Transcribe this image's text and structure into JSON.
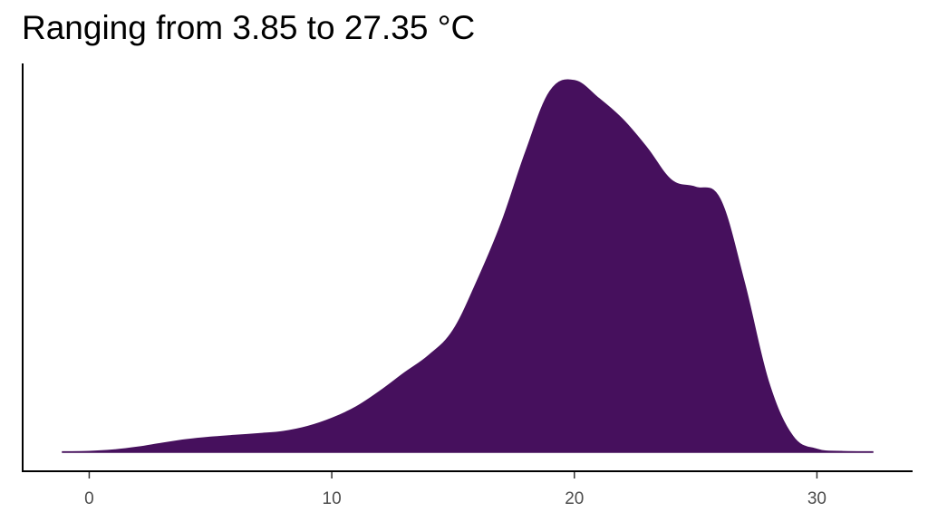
{
  "chart_data": {
    "type": "area",
    "title": "Ranging from 3.85 to 27.35 °C",
    "xlabel": "",
    "ylabel": "",
    "xlim": [
      -1.1,
      32.3
    ],
    "ylim": [
      0,
      0.108
    ],
    "x_ticks": [
      0,
      10,
      20,
      30
    ],
    "x_tick_labels": [
      "0",
      "10",
      "20",
      "30"
    ],
    "y_ticks_shown": false,
    "grid": false,
    "legend": "none",
    "fill_color": "#46105d",
    "series": [
      {
        "x": [
          -1.1,
          0,
          1,
          2,
          3,
          4,
          5,
          6,
          7,
          8,
          9,
          10,
          11,
          12,
          13,
          14,
          15,
          16,
          17,
          18,
          19,
          20,
          21,
          22,
          23,
          24,
          25,
          26,
          27,
          28,
          29,
          30,
          31,
          32.3
        ],
        "y": [
          0.0001,
          0.0002,
          0.0006,
          0.0014,
          0.0025,
          0.0035,
          0.0042,
          0.0047,
          0.0052,
          0.0058,
          0.0072,
          0.0095,
          0.0127,
          0.0172,
          0.0223,
          0.0272,
          0.0342,
          0.0482,
          0.0645,
          0.0845,
          0.1015,
          0.1045,
          0.0995,
          0.0935,
          0.0855,
          0.0765,
          0.0745,
          0.0712,
          0.0478,
          0.0198,
          0.0045,
          0.0008,
          0.0002,
          0.0001
        ]
      }
    ]
  }
}
